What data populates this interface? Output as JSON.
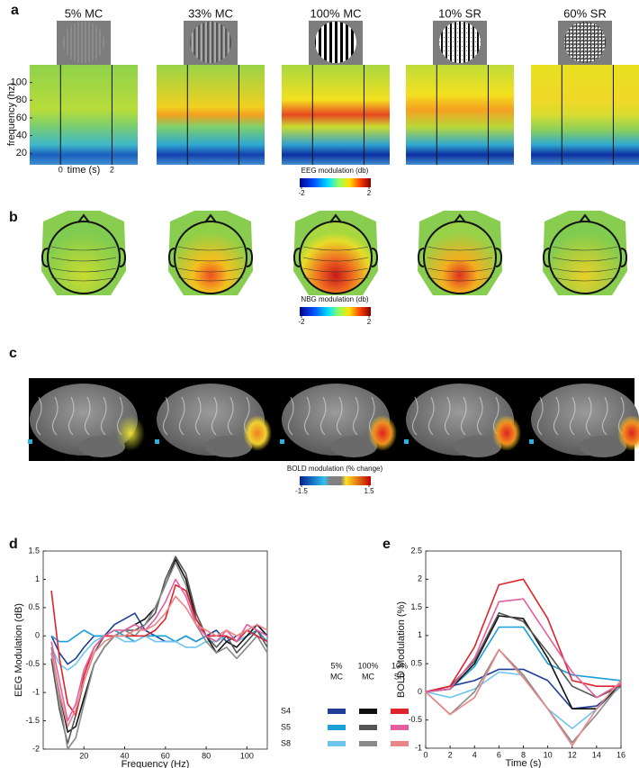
{
  "panels": [
    "a",
    "b",
    "c",
    "d",
    "e"
  ],
  "conditions": [
    "5% MC",
    "33% MC",
    "100% MC",
    "10% SR",
    "60% SR"
  ],
  "spectrogram": {
    "ylabel": "frequency (hz)",
    "xlabel": "time (s)",
    "ylim": [
      7,
      120
    ],
    "yticks": [
      20,
      40,
      60,
      80,
      100
    ],
    "xlim": [
      -1.2,
      3
    ],
    "xticks": [
      0,
      2
    ],
    "colorbar": {
      "label": "EEG modulation (db)",
      "ticks": [
        -2,
        2
      ]
    }
  },
  "topography": {
    "colorbar": {
      "label": "NBG  modulation (db)",
      "ticks": [
        -2,
        2
      ]
    }
  },
  "bold_maps": {
    "colorbar": {
      "label": "BOLD modulation (% change)",
      "ticks": [
        -1.5,
        1.5
      ]
    }
  },
  "chart_data": [
    {
      "type": "line",
      "xlabel": "Frequency (Hz)",
      "ylabel": "EEG Modulation (dB)",
      "x": [
        4,
        8,
        12,
        16,
        20,
        25,
        30,
        35,
        40,
        45,
        50,
        55,
        60,
        65,
        70,
        75,
        80,
        85,
        90,
        95,
        100,
        105,
        110
      ],
      "xlim": [
        0,
        110
      ],
      "xticks": [
        20,
        40,
        60,
        80,
        100
      ],
      "ylim": [
        -2,
        1.5
      ],
      "yticks": [
        -2,
        -1.5,
        -1,
        -0.5,
        0,
        0.5,
        1,
        1.5
      ],
      "legend": {
        "columns": [
          [
            "5%",
            "MC"
          ],
          [
            "100%",
            "MC"
          ],
          [
            "10%",
            "SR"
          ]
        ],
        "rows": [
          "S4",
          "S5",
          "S8"
        ]
      },
      "series": [
        {
          "color": "#1f3f9a",
          "values": [
            0,
            -0.3,
            -0.5,
            -0.4,
            -0.2,
            0,
            0,
            0.2,
            0.3,
            0.4,
            0.1,
            0,
            -0.1,
            -0.1,
            0,
            -0.1,
            0,
            0.1,
            -0.1,
            0,
            0.1,
            0,
            -0.1
          ]
        },
        {
          "color": "#1aa0d8",
          "values": [
            0,
            -0.1,
            -0.1,
            0,
            0.1,
            0,
            0,
            0.1,
            0,
            -0.1,
            0,
            0,
            0,
            -0.1,
            0,
            -0.1,
            0,
            -0.1,
            0,
            -0.1,
            0,
            0.1,
            -0.1
          ]
        },
        {
          "color": "#6ec6ef",
          "values": [
            -0.2,
            -0.5,
            -0.6,
            -0.5,
            -0.3,
            -0.1,
            0,
            0,
            -0.1,
            -0.1,
            0,
            -0.1,
            -0.1,
            -0.1,
            -0.2,
            -0.2,
            -0.1,
            -0.1,
            0,
            -0.1,
            0,
            0.2,
            0
          ]
        },
        {
          "color": "#111111",
          "values": [
            -0.3,
            -1.0,
            -1.7,
            -1.6,
            -1.1,
            -0.5,
            -0.2,
            0,
            0.1,
            0.2,
            0.3,
            0.5,
            0.9,
            1.35,
            1.0,
            0.3,
            0,
            -0.3,
            -0.1,
            -0.2,
            0,
            0.2,
            0
          ]
        },
        {
          "color": "#555555",
          "values": [
            -0.4,
            -1.3,
            -1.9,
            -1.4,
            -0.8,
            -0.3,
            0,
            0,
            0.1,
            0.1,
            0.2,
            0.4,
            1.0,
            1.4,
            1.1,
            0.4,
            0,
            -0.2,
            0,
            -0.3,
            -0.1,
            0.1,
            -0.2
          ]
        },
        {
          "color": "#8a8a8a",
          "values": [
            -0.2,
            -1.1,
            -2.0,
            -1.8,
            -1.2,
            -0.5,
            -0.2,
            0,
            0.1,
            0,
            0.2,
            0.5,
            0.9,
            1.3,
            0.9,
            0.2,
            -0.1,
            -0.3,
            -0.2,
            -0.4,
            -0.2,
            0,
            -0.3
          ]
        },
        {
          "color": "#e0242c",
          "values": [
            0.8,
            -0.4,
            -1.2,
            -1.4,
            -0.7,
            -0.2,
            0,
            0,
            0,
            0,
            0,
            0.1,
            0.3,
            0.9,
            0.8,
            0.3,
            0,
            0,
            0,
            -0.1,
            0.1,
            0,
            -0.1
          ]
        },
        {
          "color": "#e55fa0",
          "values": [
            -0.1,
            -0.8,
            -1.5,
            -1.2,
            -0.6,
            -0.2,
            0,
            0.1,
            0.1,
            0.2,
            0.1,
            0.3,
            0.6,
            1.0,
            0.7,
            0.2,
            0,
            -0.1,
            0.1,
            -0.1,
            0.2,
            0.1,
            0
          ]
        },
        {
          "color": "#ea8585",
          "values": [
            -0.3,
            -1.0,
            -1.6,
            -1.3,
            -0.8,
            -0.3,
            -0.1,
            0,
            0,
            0.1,
            0.1,
            0.2,
            0.4,
            0.7,
            0.5,
            0.2,
            0.1,
            0,
            0.1,
            0,
            0.1,
            0.2,
            0.1
          ]
        }
      ]
    },
    {
      "type": "line",
      "xlabel": "Time (s)",
      "ylabel": "BOLD Modulation (%)",
      "x": [
        0,
        2,
        4,
        6,
        8,
        10,
        12,
        14,
        16
      ],
      "xlim": [
        0,
        16
      ],
      "xticks": [
        0,
        2,
        4,
        6,
        8,
        10,
        12,
        14,
        16
      ],
      "ylim": [
        -1,
        2.5
      ],
      "yticks": [
        -1,
        -0.5,
        0,
        0.5,
        1,
        1.5,
        2,
        2.5
      ],
      "series": [
        {
          "color": "#1f3f9a",
          "values": [
            0,
            0.1,
            0.2,
            0.4,
            0.4,
            0.2,
            -0.3,
            -0.25,
            0.1
          ]
        },
        {
          "color": "#1aa0d8",
          "values": [
            0,
            0.05,
            0.45,
            1.15,
            1.15,
            0.5,
            0.3,
            0.25,
            0.2
          ]
        },
        {
          "color": "#6ec6ef",
          "values": [
            0,
            -0.1,
            0.05,
            0.35,
            0.3,
            -0.3,
            -0.65,
            -0.3,
            0.1
          ]
        },
        {
          "color": "#111111",
          "values": [
            0,
            0.05,
            0.5,
            1.35,
            1.3,
            0.6,
            -0.3,
            -0.3,
            0.15
          ]
        },
        {
          "color": "#555555",
          "values": [
            0,
            0.1,
            0.55,
            1.4,
            1.25,
            0.7,
            0.1,
            -0.1,
            0.1
          ]
        },
        {
          "color": "#8a8a8a",
          "values": [
            0,
            -0.4,
            0,
            0.75,
            0.3,
            -0.3,
            -0.9,
            -0.4,
            0.15
          ]
        },
        {
          "color": "#e0242c",
          "values": [
            0,
            0.1,
            0.8,
            1.9,
            2.0,
            1.3,
            0.2,
            0.1,
            0.1
          ]
        },
        {
          "color": "#e55fa0",
          "values": [
            0,
            0.05,
            0.6,
            1.6,
            1.65,
            1.0,
            0.35,
            -0.1,
            0.15
          ]
        },
        {
          "color": "#ea8585",
          "values": [
            0,
            -0.4,
            -0.1,
            0.75,
            0.25,
            -0.3,
            -0.95,
            -0.3,
            0.2
          ]
        }
      ]
    }
  ]
}
